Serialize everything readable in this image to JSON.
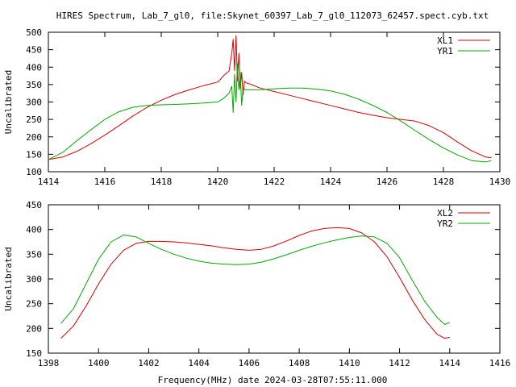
{
  "title": "HIRES Spectrum, Lab_7_gl0, file:Skynet_60397_Lab_7_gl0_112073_62457.spect.cyb.txt",
  "footer": "Frequency(MHz) date 2024-03-28T07:55:11.000",
  "colors": {
    "red": "#dd0000",
    "green": "#00aa00",
    "axis": "#000000"
  },
  "chart_data": [
    {
      "type": "line",
      "ylabel": "Uncalibrated",
      "xlim": [
        1414,
        1430
      ],
      "ylim": [
        100,
        500
      ],
      "x_ticks": [
        1414,
        1416,
        1418,
        1420,
        1422,
        1424,
        1426,
        1428,
        1430
      ],
      "y_ticks": [
        100,
        150,
        200,
        250,
        300,
        350,
        400,
        450,
        500
      ],
      "legend_position": "top-right",
      "grid": false,
      "series": [
        {
          "name": "XL1",
          "color": "#dd0000",
          "points": [
            [
              1414.0,
              135
            ],
            [
              1414.5,
              142
            ],
            [
              1415.0,
              158
            ],
            [
              1415.5,
              180
            ],
            [
              1416.0,
              205
            ],
            [
              1416.5,
              232
            ],
            [
              1417.0,
              260
            ],
            [
              1417.5,
              285
            ],
            [
              1418.0,
              305
            ],
            [
              1418.5,
              322
            ],
            [
              1419.0,
              335
            ],
            [
              1419.5,
              347
            ],
            [
              1420.0,
              357
            ],
            [
              1420.1,
              365
            ],
            [
              1420.2,
              375
            ],
            [
              1420.3,
              382
            ],
            [
              1420.4,
              388
            ],
            [
              1420.5,
              440
            ],
            [
              1420.55,
              480
            ],
            [
              1420.6,
              390
            ],
            [
              1420.65,
              490
            ],
            [
              1420.7,
              360
            ],
            [
              1420.75,
              440
            ],
            [
              1420.8,
              340
            ],
            [
              1420.85,
              385
            ],
            [
              1420.9,
              320
            ],
            [
              1420.95,
              360
            ],
            [
              1421.0,
              355
            ],
            [
              1421.2,
              350
            ],
            [
              1421.5,
              340
            ],
            [
              1422.0,
              330
            ],
            [
              1422.5,
              320
            ],
            [
              1423.0,
              310
            ],
            [
              1423.5,
              300
            ],
            [
              1424.0,
              290
            ],
            [
              1424.5,
              280
            ],
            [
              1425.0,
              270
            ],
            [
              1425.5,
              262
            ],
            [
              1426.0,
              255
            ],
            [
              1426.5,
              250
            ],
            [
              1427.0,
              245
            ],
            [
              1427.5,
              232
            ],
            [
              1428.0,
              212
            ],
            [
              1428.5,
              185
            ],
            [
              1429.0,
              160
            ],
            [
              1429.5,
              142
            ],
            [
              1429.7,
              140
            ]
          ]
        },
        {
          "name": "YR1",
          "color": "#00aa00",
          "points": [
            [
              1414.0,
              135
            ],
            [
              1414.5,
              155
            ],
            [
              1415.0,
              188
            ],
            [
              1415.5,
              220
            ],
            [
              1416.0,
              250
            ],
            [
              1416.5,
              272
            ],
            [
              1417.0,
              285
            ],
            [
              1417.5,
              290
            ],
            [
              1418.0,
              292
            ],
            [
              1418.5,
              293
            ],
            [
              1419.0,
              295
            ],
            [
              1419.5,
              297
            ],
            [
              1420.0,
              300
            ],
            [
              1420.2,
              310
            ],
            [
              1420.4,
              325
            ],
            [
              1420.5,
              345
            ],
            [
              1420.55,
              270
            ],
            [
              1420.6,
              380
            ],
            [
              1420.65,
              300
            ],
            [
              1420.7,
              410
            ],
            [
              1420.75,
              335
            ],
            [
              1420.8,
              385
            ],
            [
              1420.85,
              290
            ],
            [
              1420.9,
              340
            ],
            [
              1421.0,
              335
            ],
            [
              1421.5,
              335
            ],
            [
              1422.0,
              338
            ],
            [
              1422.5,
              340
            ],
            [
              1423.0,
              340
            ],
            [
              1423.5,
              337
            ],
            [
              1424.0,
              332
            ],
            [
              1424.5,
              322
            ],
            [
              1425.0,
              308
            ],
            [
              1425.5,
              290
            ],
            [
              1426.0,
              270
            ],
            [
              1426.5,
              245
            ],
            [
              1427.0,
              218
            ],
            [
              1427.5,
              192
            ],
            [
              1428.0,
              168
            ],
            [
              1428.5,
              148
            ],
            [
              1429.0,
              132
            ],
            [
              1429.5,
              128
            ],
            [
              1429.7,
              132
            ]
          ]
        }
      ]
    },
    {
      "type": "line",
      "ylabel": "Uncalibrated",
      "xlim": [
        1398,
        1416
      ],
      "ylim": [
        150,
        450
      ],
      "x_ticks": [
        1398,
        1400,
        1402,
        1404,
        1406,
        1408,
        1410,
        1412,
        1414,
        1416
      ],
      "y_ticks": [
        150,
        200,
        250,
        300,
        350,
        400,
        450
      ],
      "legend_position": "top-right",
      "grid": false,
      "series": [
        {
          "name": "XL2",
          "color": "#dd0000",
          "points": [
            [
              1398.5,
              180
            ],
            [
              1399.0,
              205
            ],
            [
              1399.5,
              245
            ],
            [
              1400.0,
              290
            ],
            [
              1400.5,
              330
            ],
            [
              1401.0,
              358
            ],
            [
              1401.5,
              372
            ],
            [
              1402.0,
              376
            ],
            [
              1402.5,
              376
            ],
            [
              1403.0,
              375
            ],
            [
              1403.5,
              373
            ],
            [
              1404.0,
              370
            ],
            [
              1404.5,
              367
            ],
            [
              1405.0,
              363
            ],
            [
              1405.5,
              360
            ],
            [
              1406.0,
              358
            ],
            [
              1406.5,
              360
            ],
            [
              1407.0,
              367
            ],
            [
              1407.5,
              377
            ],
            [
              1408.0,
              388
            ],
            [
              1408.5,
              397
            ],
            [
              1409.0,
              402
            ],
            [
              1409.5,
              404
            ],
            [
              1410.0,
              402
            ],
            [
              1410.5,
              393
            ],
            [
              1411.0,
              375
            ],
            [
              1411.5,
              345
            ],
            [
              1412.0,
              303
            ],
            [
              1412.5,
              258
            ],
            [
              1413.0,
              218
            ],
            [
              1413.5,
              188
            ],
            [
              1413.8,
              180
            ],
            [
              1414.0,
              182
            ]
          ]
        },
        {
          "name": "YR2",
          "color": "#00aa00",
          "points": [
            [
              1398.5,
              210
            ],
            [
              1399.0,
              240
            ],
            [
              1399.5,
              290
            ],
            [
              1400.0,
              340
            ],
            [
              1400.5,
              375
            ],
            [
              1401.0,
              389
            ],
            [
              1401.5,
              385
            ],
            [
              1402.0,
              372
            ],
            [
              1402.5,
              360
            ],
            [
              1403.0,
              350
            ],
            [
              1403.5,
              342
            ],
            [
              1404.0,
              336
            ],
            [
              1404.5,
              332
            ],
            [
              1405.0,
              330
            ],
            [
              1405.5,
              329
            ],
            [
              1406.0,
              330
            ],
            [
              1406.5,
              334
            ],
            [
              1407.0,
              341
            ],
            [
              1407.5,
              349
            ],
            [
              1408.0,
              358
            ],
            [
              1408.5,
              366
            ],
            [
              1409.0,
              373
            ],
            [
              1409.5,
              379
            ],
            [
              1410.0,
              384
            ],
            [
              1410.5,
              387
            ],
            [
              1411.0,
              385
            ],
            [
              1411.5,
              372
            ],
            [
              1412.0,
              343
            ],
            [
              1412.5,
              298
            ],
            [
              1413.0,
              255
            ],
            [
              1413.5,
              222
            ],
            [
              1413.8,
              208
            ],
            [
              1414.0,
              212
            ]
          ]
        }
      ]
    }
  ]
}
